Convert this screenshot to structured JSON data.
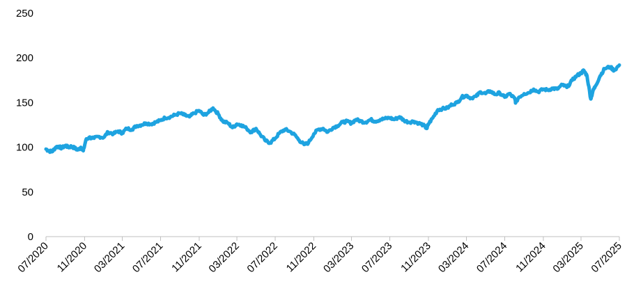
{
  "chart_data": {
    "type": "line",
    "title": "",
    "xlabel": "",
    "ylabel": "",
    "ylim": [
      0,
      250
    ],
    "yticks": [
      0,
      50,
      100,
      150,
      200,
      250
    ],
    "xlim": [
      "2020-07",
      "2025-07"
    ],
    "xticks": [
      "07/2020",
      "11/2020",
      "03/2021",
      "07/2021",
      "11/2021",
      "03/2022",
      "07/2022",
      "11/2022",
      "03/2023",
      "07/2023",
      "11/2023",
      "03/2024",
      "07/2024",
      "11/2024",
      "03/2025",
      "07/2025"
    ],
    "grid": false,
    "legend": "none",
    "line_color": "#1ea3e0",
    "series": [
      {
        "x": [
          "2020-07-01",
          "2020-07-10",
          "2020-07-20",
          "2020-08-01",
          "2020-08-10",
          "2020-08-20",
          "2020-09-01",
          "2020-09-10",
          "2020-09-20",
          "2020-10-01",
          "2020-10-10",
          "2020-10-20",
          "2020-10-28",
          "2020-11-05",
          "2020-11-15",
          "2020-12-01",
          "2020-12-15",
          "2021-01-01",
          "2021-01-15",
          "2021-02-01",
          "2021-02-15",
          "2021-03-01",
          "2021-03-15",
          "2021-04-01",
          "2021-04-15",
          "2021-05-01",
          "2021-05-15",
          "2021-06-01",
          "2021-06-15",
          "2021-07-01",
          "2021-07-15",
          "2021-08-01",
          "2021-08-15",
          "2021-09-01",
          "2021-09-15",
          "2021-10-01",
          "2021-10-15",
          "2021-11-01",
          "2021-11-15",
          "2021-12-01",
          "2021-12-15",
          "2022-01-01",
          "2022-01-15",
          "2022-02-01",
          "2022-02-15",
          "2022-03-01",
          "2022-03-15",
          "2022-04-01",
          "2022-04-15",
          "2022-05-01",
          "2022-05-15",
          "2022-06-01",
          "2022-06-15",
          "2022-07-01",
          "2022-07-15",
          "2022-08-01",
          "2022-08-15",
          "2022-09-01",
          "2022-09-15",
          "2022-10-01",
          "2022-10-15",
          "2022-11-01",
          "2022-11-15",
          "2022-12-01",
          "2022-12-15",
          "2023-01-01",
          "2023-01-15",
          "2023-02-01",
          "2023-02-15",
          "2023-03-01",
          "2023-03-15",
          "2023-04-01",
          "2023-04-15",
          "2023-05-01",
          "2023-05-15",
          "2023-06-01",
          "2023-06-15",
          "2023-07-01",
          "2023-07-15",
          "2023-08-01",
          "2023-08-15",
          "2023-09-01",
          "2023-09-15",
          "2023-10-01",
          "2023-10-15",
          "2023-10-27",
          "2023-11-01",
          "2023-11-15",
          "2023-12-01",
          "2023-12-15",
          "2024-01-01",
          "2024-01-15",
          "2024-02-01",
          "2024-02-15",
          "2024-03-01",
          "2024-03-15",
          "2024-04-01",
          "2024-04-15",
          "2024-05-01",
          "2024-05-15",
          "2024-06-01",
          "2024-06-15",
          "2024-07-01",
          "2024-07-15",
          "2024-08-01",
          "2024-08-05",
          "2024-08-15",
          "2024-09-01",
          "2024-09-15",
          "2024-10-01",
          "2024-10-15",
          "2024-11-01",
          "2024-11-15",
          "2024-12-01",
          "2024-12-15",
          "2025-01-01",
          "2025-01-15",
          "2025-02-01",
          "2025-02-15",
          "2025-03-01",
          "2025-03-10",
          "2025-03-20",
          "2025-04-01",
          "2025-04-08",
          "2025-04-15",
          "2025-05-01",
          "2025-05-15",
          "2025-06-01",
          "2025-06-15",
          "2025-07-01"
        ],
        "values": [
          98,
          96,
          95,
          100,
          101,
          99,
          102,
          100,
          101,
          99,
          97,
          100,
          96,
          108,
          111,
          110,
          112,
          111,
          117,
          115,
          118,
          116,
          121,
          120,
          124,
          125,
          127,
          126,
          128,
          130,
          133,
          134,
          136,
          138,
          136,
          134,
          138,
          141,
          136,
          139,
          144,
          137,
          129,
          127,
          122,
          126,
          125,
          121,
          117,
          121,
          114,
          107,
          105,
          110,
          116,
          120,
          118,
          114,
          108,
          103,
          105,
          115,
          120,
          121,
          117,
          122,
          124,
          128,
          129,
          127,
          131,
          129,
          128,
          131,
          129,
          131,
          132,
          133,
          131,
          134,
          130,
          128,
          129,
          127,
          125,
          121,
          126,
          133,
          142,
          143,
          144,
          148,
          150,
          156,
          158,
          155,
          157,
          162,
          160,
          163,
          159,
          161,
          156,
          160,
          155,
          150,
          156,
          160,
          161,
          165,
          162,
          165,
          164,
          166,
          165,
          170,
          167,
          175,
          180,
          183,
          186,
          180,
          154,
          163,
          168,
          180,
          188,
          190,
          186,
          192
        ]
      }
    ]
  }
}
